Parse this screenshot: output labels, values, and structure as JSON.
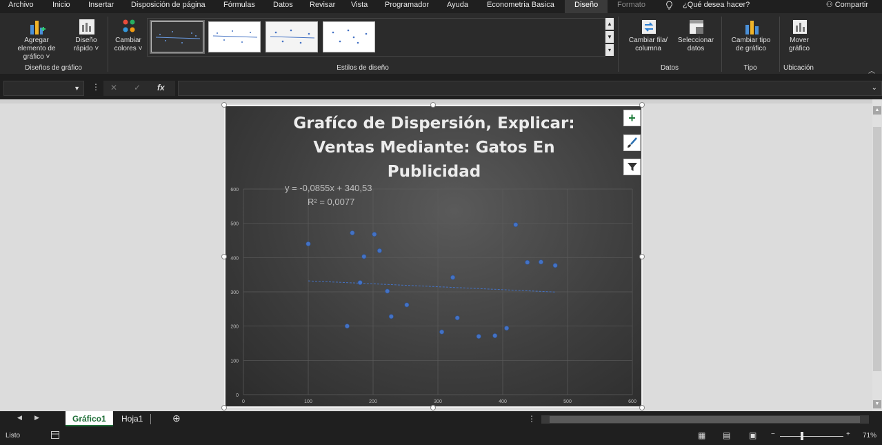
{
  "menu": {
    "tabs": [
      "Archivo",
      "Inicio",
      "Insertar",
      "Disposición de página",
      "Fórmulas",
      "Datos",
      "Revisar",
      "Vista",
      "Programador",
      "Ayuda",
      "Econometria Basica",
      "Diseño",
      "Formato"
    ],
    "active_tab": "Diseño",
    "tell_me": "¿Qué desea hacer?",
    "share": "Compartir"
  },
  "ribbon": {
    "add_element": "Agregar elemento de gráfico ˅",
    "quick_layout": "Diseño rápido ˅",
    "change_colors": "Cambiar colores ˅",
    "group_layouts": "Diseños de gráfico",
    "group_styles": "Estilos de diseño",
    "switch_row_col": "Cambiar fila/ columna",
    "select_data": "Seleccionar datos",
    "group_data": "Datos",
    "change_type": "Cambiar tipo de gráfico",
    "group_type": "Tipo",
    "move_chart": "Mover gráfico",
    "group_location": "Ubicación"
  },
  "formula_bar": {
    "name_box": "",
    "fx": "fx",
    "value": ""
  },
  "chart_data": {
    "type": "scatter",
    "title": "Grafíco de Dispersión, Explicar: Ventas Mediante: Gatos En Publicidad",
    "xlim": [
      0,
      600
    ],
    "ylim": [
      0,
      600
    ],
    "x_ticks": [
      "0",
      "100",
      "200",
      "300",
      "400",
      "500",
      "600"
    ],
    "y_ticks": [
      "0",
      "100",
      "200",
      "300",
      "400",
      "500",
      "600"
    ],
    "grid": true,
    "points": [
      {
        "x": 100,
        "y": 440
      },
      {
        "x": 160,
        "y": 200
      },
      {
        "x": 168,
        "y": 472
      },
      {
        "x": 180,
        "y": 327
      },
      {
        "x": 186,
        "y": 403
      },
      {
        "x": 202,
        "y": 468
      },
      {
        "x": 210,
        "y": 420
      },
      {
        "x": 222,
        "y": 302
      },
      {
        "x": 228,
        "y": 228
      },
      {
        "x": 252,
        "y": 262
      },
      {
        "x": 306,
        "y": 183
      },
      {
        "x": 323,
        "y": 342
      },
      {
        "x": 330,
        "y": 224
      },
      {
        "x": 363,
        "y": 170
      },
      {
        "x": 388,
        "y": 172
      },
      {
        "x": 406,
        "y": 194
      },
      {
        "x": 420,
        "y": 496
      },
      {
        "x": 438,
        "y": 386
      },
      {
        "x": 459,
        "y": 387
      },
      {
        "x": 481,
        "y": 377
      }
    ],
    "trendline": {
      "x_start": 100,
      "x_end": 481
    },
    "equation": "y = -0,0855x + 340,53",
    "r_squared": "R² = 0,0077",
    "colors": {
      "point": "#4472c4",
      "trend": "#4472c4"
    }
  },
  "sheets": {
    "tabs": [
      "Gráfico1",
      "Hoja1"
    ],
    "active": "Gráfico1"
  },
  "status": {
    "ready": "Listo",
    "zoom": "71%"
  }
}
